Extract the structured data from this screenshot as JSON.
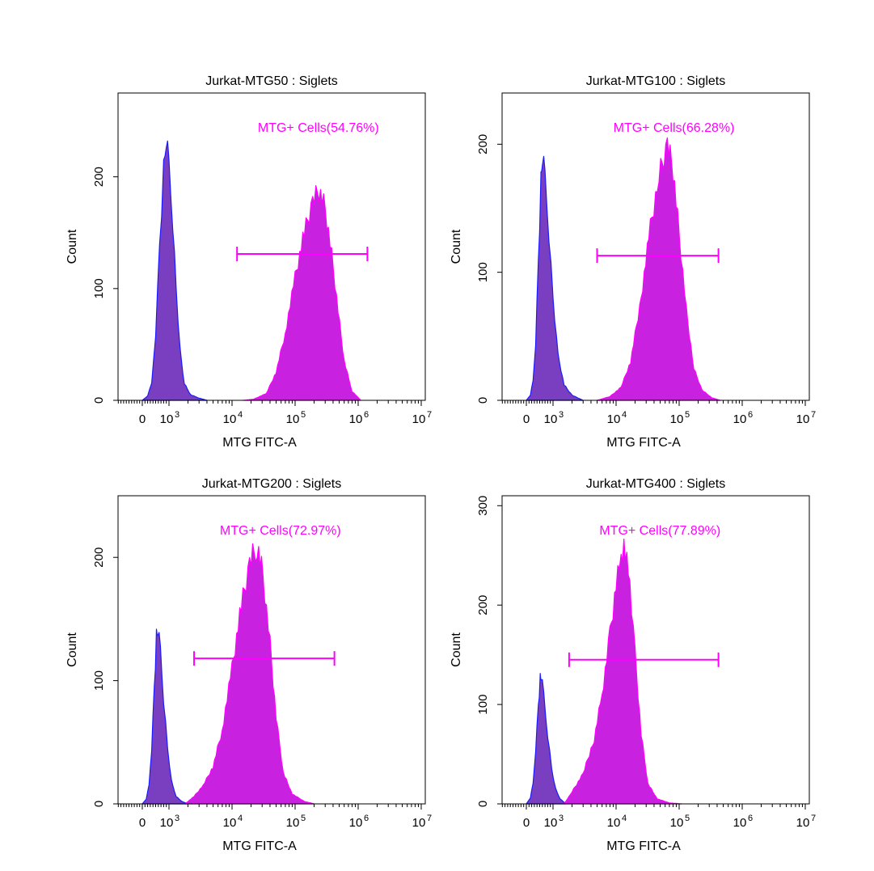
{
  "colors": {
    "negative_fill": "#7a3fc0",
    "negative_outline": "#1b1bff",
    "positive_fill": "#c822e0",
    "positive_outline": "#ff00ff",
    "gate": "#ff00ff",
    "axis": "#000000"
  },
  "chart_data": [
    {
      "type": "area",
      "title": "Jurkat-MTG50 : Siglets",
      "xlabel": "MTG FITC-A",
      "ylabel": "Count",
      "x_scale": "biexponential (log above 10^3)",
      "x_ticklabels": [
        "0",
        "10^3",
        "10^4",
        "10^5",
        "10^6",
        "10^7"
      ],
      "y_ticklabels": [
        "0",
        "100",
        "200"
      ],
      "ylim": [
        0,
        275
      ],
      "gate": {
        "label": "MTG+ Cells(54.76%)",
        "range": [
          12000,
          1400000
        ],
        "y": 131
      },
      "series": [
        {
          "peak_x": 900,
          "peak_count": 232,
          "points": [
            [
              0,
              0
            ],
            [
              200,
              4
            ],
            [
              350,
              15
            ],
            [
              500,
              60
            ],
            [
              650,
              140
            ],
            [
              800,
              205
            ],
            [
              900,
              232
            ],
            [
              1000,
              210
            ],
            [
              1150,
              160
            ],
            [
              1300,
              100
            ],
            [
              1500,
              45
            ],
            [
              1750,
              15
            ],
            [
              2200,
              5
            ],
            [
              3000,
              2
            ],
            [
              4000,
              0
            ]
          ]
        },
        {
          "peak_x": 240000,
          "peak_count": 188,
          "points": [
            [
              15000,
              0
            ],
            [
              22000,
              1
            ],
            [
              35000,
              6
            ],
            [
              50000,
              25
            ],
            [
              70000,
              60
            ],
            [
              100000,
              110
            ],
            [
              140000,
              150
            ],
            [
              190000,
              178
            ],
            [
              240000,
              188
            ],
            [
              300000,
              172
            ],
            [
              380000,
              130
            ],
            [
              480000,
              80
            ],
            [
              600000,
              35
            ],
            [
              800000,
              8
            ],
            [
              1100000,
              0
            ]
          ]
        }
      ]
    },
    {
      "type": "area",
      "title": "Jurkat-MTG100 : Siglets",
      "xlabel": "MTG FITC-A",
      "ylabel": "Count",
      "x_scale": "biexponential (log above 10^3)",
      "x_ticklabels": [
        "0",
        "10^3",
        "10^4",
        "10^5",
        "10^6",
        "10^7"
      ],
      "y_ticklabels": [
        "0",
        "100",
        "200"
      ],
      "ylim": [
        0,
        240
      ],
      "gate": {
        "label": "MTG+ Cells(66.28%)",
        "range": [
          5000,
          420000
        ],
        "y": 113
      },
      "series": [
        {
          "peak_x": 600,
          "peak_count": 188,
          "points": [
            [
              0,
              0
            ],
            [
              150,
              4
            ],
            [
              250,
              15
            ],
            [
              350,
              45
            ],
            [
              450,
              110
            ],
            [
              550,
              170
            ],
            [
              600,
              188
            ],
            [
              700,
              175
            ],
            [
              850,
              130
            ],
            [
              1000,
              80
            ],
            [
              1200,
              35
            ],
            [
              1500,
              12
            ],
            [
              2000,
              4
            ],
            [
              3000,
              0
            ]
          ]
        },
        {
          "peak_x": 65000,
          "peak_count": 200,
          "points": [
            [
              5000,
              0
            ],
            [
              8000,
              3
            ],
            [
              12000,
              10
            ],
            [
              17000,
              30
            ],
            [
              25000,
              80
            ],
            [
              35000,
              135
            ],
            [
              48000,
              175
            ],
            [
              65000,
              200
            ],
            [
              80000,
              180
            ],
            [
              100000,
              130
            ],
            [
              130000,
              70
            ],
            [
              170000,
              25
            ],
            [
              230000,
              8
            ],
            [
              330000,
              2
            ],
            [
              450000,
              0
            ]
          ]
        }
      ]
    },
    {
      "type": "area",
      "title": "Jurkat-MTG200 : Siglets",
      "xlabel": "MTG FITC-A",
      "ylabel": "Count",
      "x_scale": "biexponential (log above 10^3)",
      "x_ticklabels": [
        "0",
        "10^3",
        "10^4",
        "10^5",
        "10^6",
        "10^7"
      ],
      "y_ticklabels": [
        "0",
        "100",
        "200"
      ],
      "ylim": [
        0,
        250
      ],
      "gate": {
        "label": "MTG+ Cells(72.97%)",
        "range": [
          2500,
          420000
        ],
        "y": 118
      },
      "series": [
        {
          "peak_x": 580,
          "peak_count": 140,
          "points": [
            [
              0,
              0
            ],
            [
              150,
              4
            ],
            [
              250,
              15
            ],
            [
              350,
              45
            ],
            [
              450,
              95
            ],
            [
              530,
              135
            ],
            [
              580,
              140
            ],
            [
              680,
              125
            ],
            [
              800,
              85
            ],
            [
              950,
              45
            ],
            [
              1100,
              18
            ],
            [
              1300,
              6
            ],
            [
              1600,
              2
            ],
            [
              2000,
              0
            ]
          ]
        },
        {
          "peak_x": 25000,
          "peak_count": 210,
          "points": [
            [
              1800,
              0
            ],
            [
              2500,
              6
            ],
            [
              3500,
              15
            ],
            [
              5000,
              30
            ],
            [
              7000,
              60
            ],
            [
              10000,
              110
            ],
            [
              14000,
              160
            ],
            [
              19000,
              195
            ],
            [
              25000,
              210
            ],
            [
              31000,
              185
            ],
            [
              40000,
              130
            ],
            [
              50000,
              70
            ],
            [
              65000,
              25
            ],
            [
              90000,
              8
            ],
            [
              140000,
              2
            ],
            [
              200000,
              0
            ]
          ]
        }
      ]
    },
    {
      "type": "area",
      "title": "Jurkat-MTG400 : Siglets",
      "xlabel": "MTG FITC-A",
      "ylabel": "Count",
      "x_scale": "biexponential (log above 10^3)",
      "x_ticklabels": [
        "0",
        "10^3",
        "10^4",
        "10^5",
        "10^6",
        "10^7"
      ],
      "y_ticklabels": [
        "0",
        "100",
        "200",
        "300"
      ],
      "ylim": [
        0,
        310
      ],
      "gate": {
        "label": "MTG+ Cells(77.89%)",
        "range": [
          1800,
          420000
        ],
        "y": 145
      },
      "series": [
        {
          "peak_x": 550,
          "peak_count": 128,
          "points": [
            [
              0,
              0
            ],
            [
              150,
              6
            ],
            [
              250,
              20
            ],
            [
              350,
              55
            ],
            [
              450,
              100
            ],
            [
              520,
              125
            ],
            [
              550,
              128
            ],
            [
              650,
              110
            ],
            [
              800,
              70
            ],
            [
              950,
              35
            ],
            [
              1100,
              15
            ],
            [
              1300,
              5
            ],
            [
              1600,
              0
            ]
          ]
        },
        {
          "peak_x": 14000,
          "peak_count": 258,
          "points": [
            [
              1500,
              0
            ],
            [
              2000,
              12
            ],
            [
              3000,
              30
            ],
            [
              4500,
              65
            ],
            [
              6000,
              110
            ],
            [
              8000,
              170
            ],
            [
              10000,
              220
            ],
            [
              12000,
              245
            ],
            [
              14000,
              258
            ],
            [
              16500,
              225
            ],
            [
              20000,
              150
            ],
            [
              25000,
              70
            ],
            [
              32000,
              20
            ],
            [
              45000,
              5
            ],
            [
              70000,
              1
            ],
            [
              110000,
              0
            ]
          ]
        }
      ]
    }
  ]
}
